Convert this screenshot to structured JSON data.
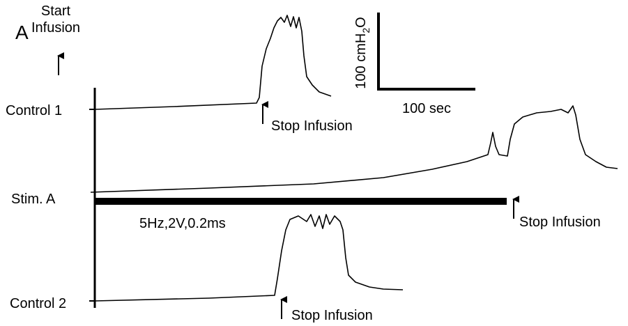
{
  "panel_label": "A",
  "start_infusion": [
    "Start",
    "Infusion"
  ],
  "traces": [
    {
      "label": "Control 1",
      "stop_label": "Stop Infusion"
    },
    {
      "label": "Stim. A",
      "stimulus": "5Hz,2V,0.2ms",
      "stop_label": "Stop Infusion"
    },
    {
      "label": "Control 2",
      "stop_label": "Stop Infusion"
    }
  ],
  "scale_bar": {
    "y_label": {
      "main": "100 cmH",
      "sub": "2",
      "end": "O"
    },
    "x_label": "100 sec"
  }
}
